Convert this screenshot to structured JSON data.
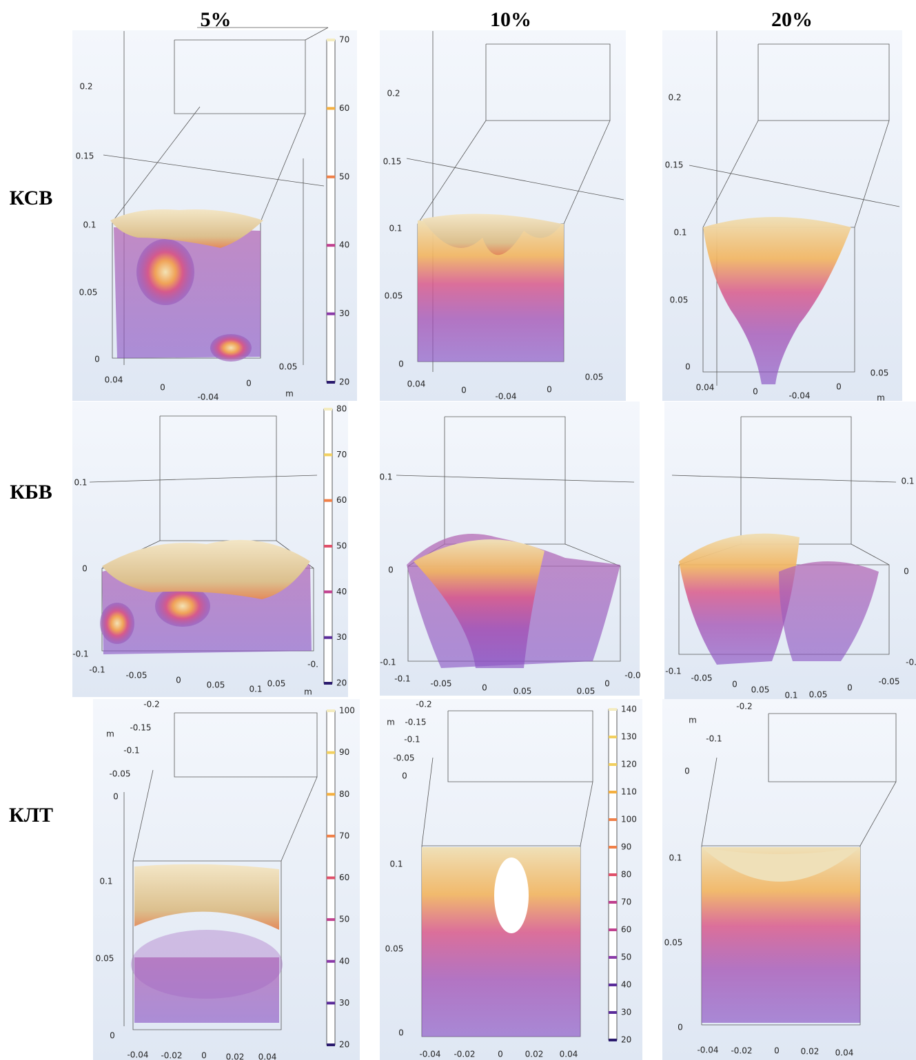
{
  "column_headers": [
    "5%",
    "10%",
    "20%"
  ],
  "rows": [
    {
      "label": "КСВ",
      "panels": [
        {
          "axis_labels": [
            "0.2",
            "0.15",
            "0.1",
            "0.05",
            "0",
            "0.04",
            "0",
            "-0.04",
            "0.05",
            "0",
            "m"
          ],
          "colorbar": [
            20,
            30,
            40,
            50,
            60,
            70
          ]
        },
        {
          "axis_labels": [
            "0.2",
            "0.15",
            "0.1",
            "0.05",
            "0",
            "0.04",
            "0",
            "-0.04",
            "0",
            "0.05"
          ]
        },
        {
          "axis_labels": [
            "0.2",
            "0.15",
            "0.1",
            "0.05",
            "0",
            "0.04",
            "0",
            "-0.04",
            "0",
            "0.05",
            "m"
          ]
        }
      ]
    },
    {
      "label": "КБВ",
      "panels": [
        {
          "axis_labels": [
            "0.1",
            "0",
            "-0.1",
            "-0.1",
            "-0.05",
            "0",
            "0.05",
            "0.1",
            "0.05",
            "-0.",
            "m"
          ],
          "colorbar": [
            20,
            30,
            40,
            50,
            60,
            70,
            80
          ]
        },
        {
          "axis_labels": [
            "0.1",
            "0",
            "-0.1",
            "-0.1",
            "-0.05",
            "0",
            "0.05",
            "0.05",
            "0",
            "-0.0"
          ]
        },
        {
          "axis_labels": [
            "0.1",
            "0",
            "-0.1",
            "-0.05",
            "0",
            "0.05",
            "0.1",
            "0.05",
            "0",
            "-0.05",
            "-0."
          ]
        }
      ]
    },
    {
      "label": "КЛТ",
      "panels": [
        {
          "axis_labels": [
            "-0.2",
            "-0.15",
            "-0.1",
            "-0.05",
            "0",
            "m",
            "0.1",
            "0.05",
            "0",
            "-0.04",
            "-0.02",
            "0",
            "0.02",
            "0.04"
          ],
          "colorbar": [
            20,
            30,
            40,
            50,
            60,
            70,
            80,
            90,
            100
          ]
        },
        {
          "axis_labels": [
            "-0.2",
            "-0.15",
            "-0.1",
            "-0.05",
            "0",
            "m",
            "0.1",
            "0.05",
            "0",
            "-0.04",
            "-0.02",
            "0",
            "0.02",
            "0.04"
          ],
          "colorbar": [
            20,
            30,
            40,
            50,
            60,
            70,
            80,
            90,
            100,
            110,
            120,
            130,
            140
          ]
        },
        {
          "axis_labels": [
            "-0.2",
            "-0.1",
            "0",
            "m",
            "0.1",
            "0.05",
            "0",
            "-0.04",
            "-0.02",
            "0",
            "0.02",
            "0.04"
          ]
        }
      ]
    }
  ]
}
